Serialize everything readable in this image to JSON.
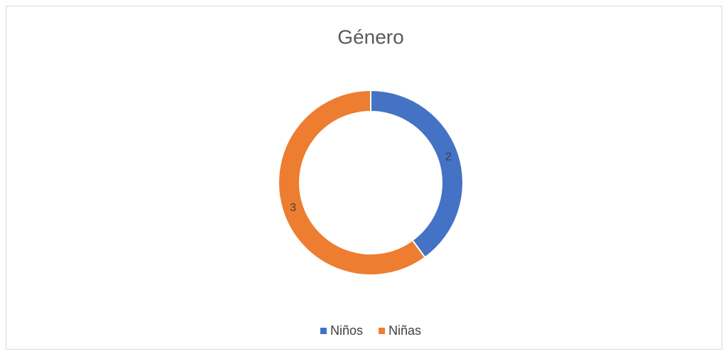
{
  "chart_data": {
    "type": "doughnut",
    "title": "Género",
    "categories": [
      "Niños",
      "Niñas"
    ],
    "values": [
      2,
      3
    ],
    "colors": [
      "#4472c4",
      "#ed7d31"
    ],
    "legend": "bottom"
  }
}
